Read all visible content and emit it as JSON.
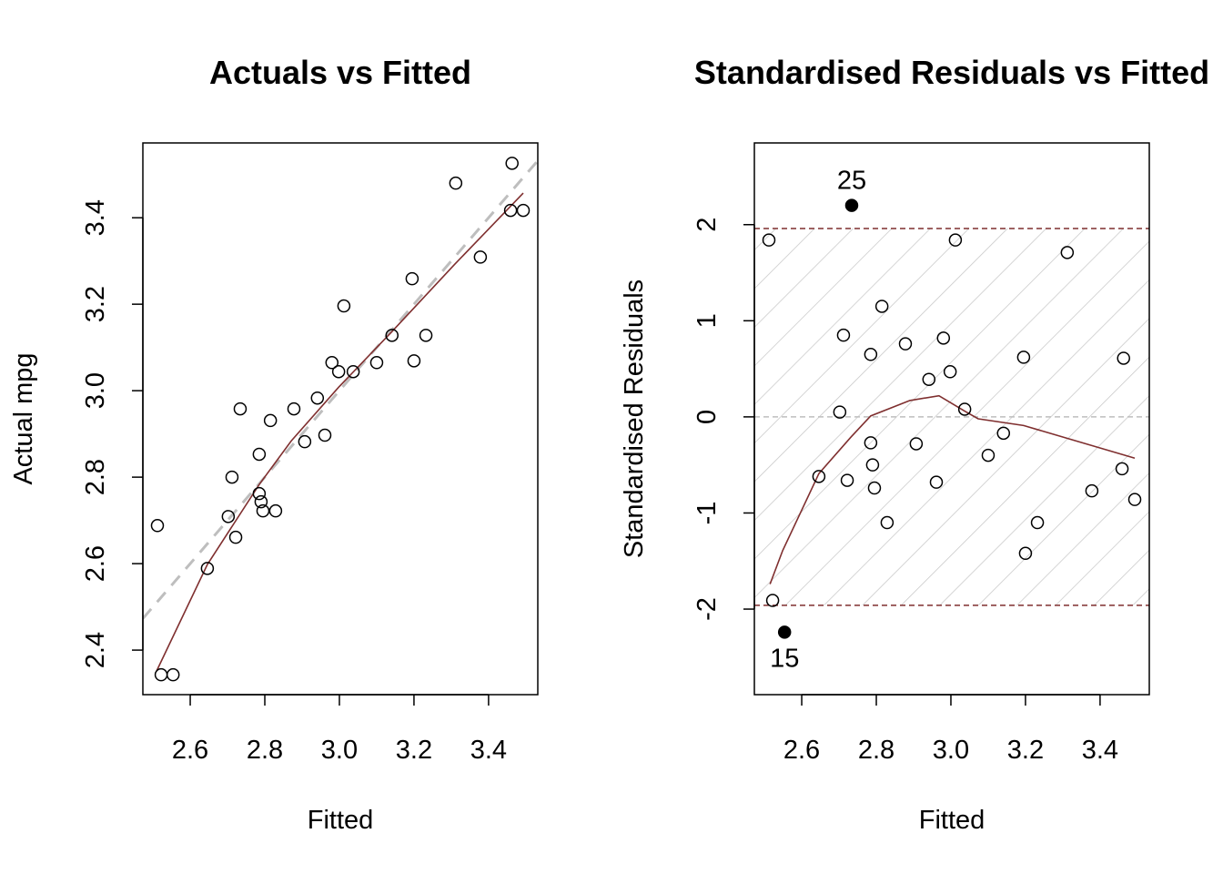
{
  "chart_data": [
    {
      "type": "scatter",
      "title": "Actuals vs Fitted",
      "xlabel": "Fitted",
      "ylabel": "Actual mpg",
      "xlim": [
        2.473,
        3.532
      ],
      "ylim": [
        2.297,
        3.573
      ],
      "xticks": [
        "2.6",
        "2.8",
        "3.0",
        "3.2",
        "3.4"
      ],
      "yticks": [
        "2.4",
        "2.6",
        "2.8",
        "3.0",
        "3.2",
        "3.4"
      ],
      "grid": false,
      "points": {
        "x": [
          2.512,
          2.522,
          2.554,
          2.646,
          2.702,
          2.712,
          2.722,
          2.734,
          2.785,
          2.785,
          2.79,
          2.795,
          2.815,
          2.829,
          2.878,
          2.907,
          2.941,
          2.961,
          2.98,
          2.998,
          3.012,
          3.037,
          3.1,
          3.141,
          3.195,
          3.2,
          3.232,
          3.312,
          3.378,
          3.459,
          3.463,
          3.493
        ],
        "y": [
          2.688,
          2.343,
          2.343,
          2.589,
          2.709,
          2.8,
          2.661,
          2.958,
          2.853,
          2.762,
          2.743,
          2.722,
          2.931,
          2.722,
          2.958,
          2.882,
          2.983,
          2.897,
          3.065,
          3.044,
          3.196,
          3.044,
          3.065,
          3.128,
          3.259,
          3.069,
          3.128,
          3.48,
          3.309,
          3.417,
          3.526,
          3.417
        ]
      },
      "smooth": {
        "x": [
          2.51,
          2.646,
          2.785,
          2.871,
          2.998,
          3.139,
          3.31,
          3.493
        ],
        "y": [
          2.352,
          2.598,
          2.783,
          2.884,
          3.008,
          3.135,
          3.293,
          3.457
        ]
      },
      "reference_line": "y = x (dashed)",
      "colors": {
        "points": "#000000",
        "smooth": "#7F2F2F",
        "reference": "#BEBEBE"
      }
    },
    {
      "type": "scatter",
      "title": "Standardised Residuals vs Fitted",
      "xlabel": "Fitted",
      "ylabel": "Standardised Residuals",
      "xlim": [
        2.473,
        3.532
      ],
      "ylim": [
        -2.89,
        2.85
      ],
      "xticks": [
        "2.6",
        "2.8",
        "3.0",
        "3.2",
        "3.4"
      ],
      "yticks": [
        "-2",
        "-1",
        "0",
        "1",
        "2"
      ],
      "grid": false,
      "bands": [
        -1.96,
        1.96
      ],
      "points": {
        "x": [
          2.512,
          2.522,
          2.554,
          2.646,
          2.702,
          2.712,
          2.722,
          2.734,
          2.785,
          2.785,
          2.79,
          2.795,
          2.815,
          2.829,
          2.878,
          2.907,
          2.941,
          2.961,
          2.98,
          2.998,
          3.012,
          3.037,
          3.1,
          3.141,
          3.195,
          3.2,
          3.232,
          3.312,
          3.378,
          3.459,
          3.463,
          3.493
        ],
        "y": [
          1.84,
          -1.91,
          -2.24,
          -0.62,
          0.05,
          0.85,
          -0.66,
          2.2,
          0.65,
          -0.27,
          -0.5,
          -0.74,
          1.15,
          -1.1,
          0.76,
          -0.28,
          0.39,
          -0.68,
          0.82,
          0.47,
          1.84,
          0.08,
          -0.4,
          -0.17,
          0.62,
          -1.42,
          -1.1,
          1.71,
          -0.77,
          -0.54,
          0.61,
          -0.86
        ],
        "labels": [
          "",
          "",
          "15",
          "",
          "",
          "",
          "",
          "25",
          "",
          "",
          "",
          "",
          "",
          "",
          "",
          "",
          "",
          "",
          "",
          "",
          "",
          "",
          "",
          "",
          "",
          "",
          "",
          "",
          "",
          "",
          "",
          ""
        ],
        "outlier": [
          false,
          false,
          true,
          false,
          false,
          false,
          false,
          true,
          false,
          false,
          false,
          false,
          false,
          false,
          false,
          false,
          false,
          false,
          false,
          false,
          false,
          false,
          false,
          false,
          false,
          false,
          false,
          false,
          false,
          false,
          false,
          false
        ]
      },
      "smooth": {
        "x": [
          2.515,
          2.549,
          2.646,
          2.732,
          2.785,
          2.89,
          2.968,
          3.037,
          3.073,
          3.195,
          3.493
        ],
        "y": [
          -1.74,
          -1.39,
          -0.59,
          -0.21,
          0.01,
          0.17,
          0.22,
          0.06,
          -0.02,
          -0.09,
          -0.43
        ]
      },
      "colors": {
        "points": "#000000",
        "smooth": "#7F2F2F",
        "bands": "#7F2F2F",
        "hatch": "#C8C8C8",
        "zero_line": "#BEBEBE"
      }
    }
  ]
}
